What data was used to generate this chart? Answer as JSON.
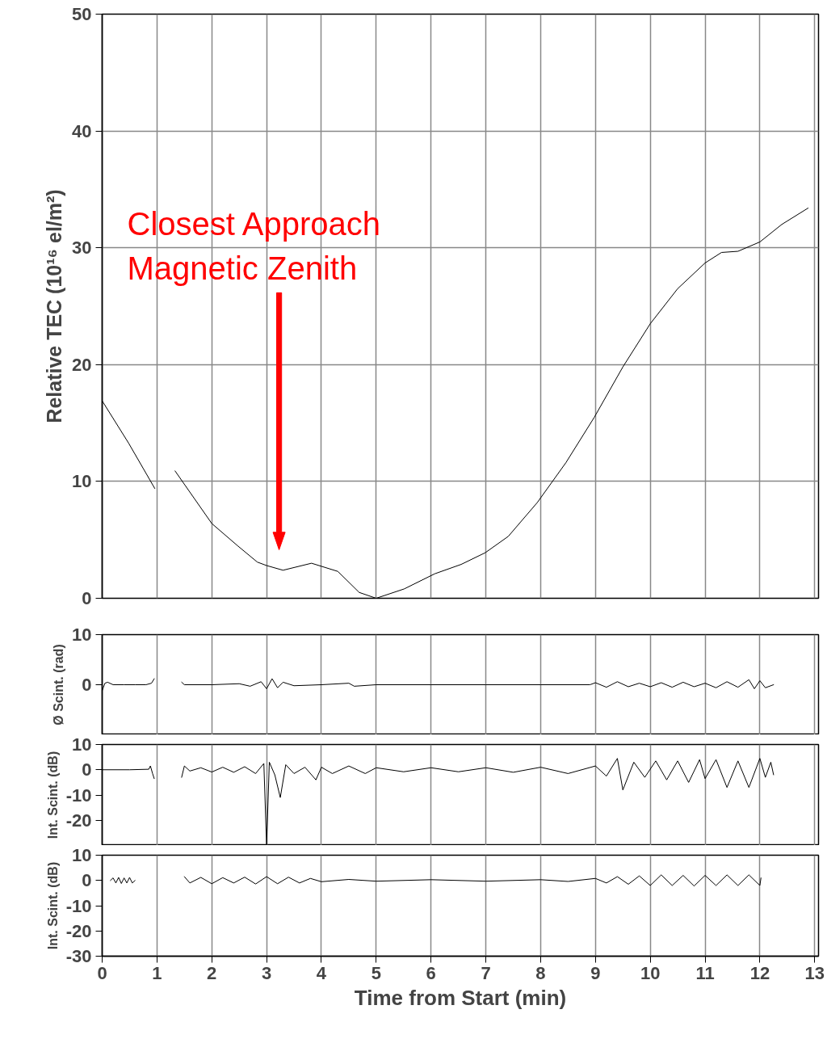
{
  "chart_data": [
    {
      "type": "line",
      "ylabel": "Relative TEC (10¹⁶ el/m²)",
      "xlim": [
        0,
        13.07
      ],
      "xticks": [
        0,
        1,
        2,
        3,
        4,
        5,
        6,
        7,
        8,
        9,
        10,
        11,
        12,
        13
      ],
      "ylim": [
        0,
        50
      ],
      "yticks": [
        0,
        10,
        20,
        30,
        40,
        50
      ],
      "grid": true,
      "tick_labels": "y",
      "series": [
        {
          "color": "#000000",
          "x": [
            0,
            0.48,
            0.96,
            1.1,
            1.33,
            2.0,
            2.47,
            2.83,
            3.0,
            3.3,
            3.82,
            4.3,
            4.69,
            5.0,
            5.51,
            6.07,
            6.55,
            6.99,
            7.41,
            7.94,
            8.46,
            8.98,
            9.5,
            10.0,
            10.5,
            11.0,
            11.3,
            11.6,
            12.0,
            12.4,
            12.88
          ],
          "values": [
            16.9,
            13.3,
            9.4,
            null,
            10.9,
            6.4,
            4.5,
            3.1,
            2.8,
            2.4,
            3.0,
            2.3,
            0.5,
            0,
            0.8,
            2.1,
            2.9,
            3.9,
            5.3,
            8.2,
            11.6,
            15.5,
            19.8,
            23.5,
            26.5,
            28.7,
            29.6,
            29.7,
            30.5,
            32.0,
            33.4
          ]
        }
      ],
      "annotations": [
        "Closest Approach\nMagnetic Zenith"
      ]
    },
    {
      "type": "line",
      "ylabel": "Ø Scint. (rad)",
      "xlim": [
        0,
        13.07
      ],
      "xticks": [
        0,
        1,
        2,
        3,
        4,
        5,
        6,
        7,
        8,
        9,
        10,
        11,
        12,
        13
      ],
      "ylim": [
        -10,
        10
      ],
      "yticks": [
        0,
        10
      ],
      "grid": "x",
      "tick_labels": "y",
      "series": [
        {
          "color": "#000000",
          "x": [
            0.0,
            0.05,
            0.1,
            0.2,
            0.4,
            0.6,
            0.8,
            0.9,
            0.95,
            1.2,
            1.45,
            1.5,
            2.0,
            2.5,
            2.7,
            2.9,
            3.0,
            3.1,
            3.2,
            3.3,
            3.5,
            4.0,
            4.5,
            4.6,
            5.0,
            6.0,
            7.0,
            8.0,
            8.9,
            9.0,
            9.2,
            9.4,
            9.6,
            9.8,
            10.0,
            10.2,
            10.4,
            10.6,
            10.8,
            11.0,
            11.2,
            11.4,
            11.6,
            11.8,
            11.9,
            12.0,
            12.1,
            12.25
          ],
          "values": [
            -1.2,
            0.3,
            0.5,
            0,
            0,
            0,
            0,
            0.3,
            1.2,
            null,
            0.5,
            0,
            0,
            0.2,
            -0.3,
            0.6,
            -0.8,
            1.2,
            -0.6,
            0.5,
            -0.2,
            0,
            0.3,
            -0.3,
            0,
            0,
            0,
            0,
            0,
            0.4,
            -0.5,
            0.6,
            -0.4,
            0.3,
            -0.4,
            0.4,
            -0.5,
            0.5,
            -0.4,
            0.3,
            -0.6,
            0.6,
            -0.5,
            1.0,
            -0.8,
            0.8,
            -0.6,
            0
          ]
        }
      ]
    },
    {
      "type": "line",
      "ylabel": "Int. Scint. (dB)",
      "xlim": [
        0,
        13.07
      ],
      "xticks": [
        0,
        1,
        2,
        3,
        4,
        5,
        6,
        7,
        8,
        9,
        10,
        11,
        12,
        13
      ],
      "ylim": [
        -30,
        10
      ],
      "yticks": [
        -20,
        -10,
        0,
        10
      ],
      "grid": "x",
      "tick_labels": "y",
      "series": [
        {
          "color": "#000000",
          "x": [
            0.0,
            0.5,
            0.85,
            0.88,
            0.92,
            0.95,
            1.2,
            1.45,
            1.5,
            1.6,
            1.8,
            2.0,
            2.2,
            2.4,
            2.6,
            2.8,
            2.95,
            3.0,
            3.05,
            3.15,
            3.25,
            3.35,
            3.5,
            3.7,
            3.9,
            4.0,
            4.2,
            4.5,
            4.8,
            5.0,
            5.5,
            6.0,
            6.5,
            7.0,
            7.5,
            8.0,
            8.5,
            9.0,
            9.2,
            9.4,
            9.5,
            9.7,
            9.9,
            10.1,
            10.3,
            10.5,
            10.7,
            10.9,
            11.0,
            11.2,
            11.4,
            11.6,
            11.8,
            12.0,
            12.1,
            12.2,
            12.25
          ],
          "values": [
            0,
            0,
            0.2,
            1.5,
            -1.5,
            -3.5,
            null,
            -3,
            1.5,
            -0.5,
            0.8,
            -0.9,
            1.0,
            -1,
            1.2,
            -1.5,
            2.5,
            -30,
            3.0,
            -2,
            -11,
            2,
            -1.5,
            1,
            -4,
            1,
            -1.5,
            1.5,
            -1.5,
            0.8,
            -0.8,
            0.8,
            -0.8,
            0.8,
            -1,
            1,
            -1.5,
            1.5,
            -2.5,
            4.5,
            -8,
            3,
            -3,
            3.5,
            -4,
            3.5,
            -5,
            4,
            -3.5,
            4,
            -7,
            3.5,
            -7,
            4.5,
            -3,
            3,
            -2
          ]
        }
      ]
    },
    {
      "type": "line",
      "xlabel": "Time from Start (min)",
      "ylabel": "Int. Scint. (dB)",
      "xlim": [
        0,
        13.07
      ],
      "xticks": [
        0,
        1,
        2,
        3,
        4,
        5,
        6,
        7,
        8,
        9,
        10,
        11,
        12,
        13
      ],
      "ylim": [
        -30,
        10
      ],
      "yticks": [
        -30,
        -20,
        -10,
        0,
        10
      ],
      "grid": "x",
      "series": [
        {
          "color": "#000000",
          "x": [
            0.15,
            0.2,
            0.25,
            0.3,
            0.35,
            0.4,
            0.45,
            0.5,
            0.55,
            0.6,
            1.0,
            1.5,
            1.6,
            1.8,
            2.0,
            2.2,
            2.4,
            2.6,
            2.8,
            3.0,
            3.2,
            3.4,
            3.6,
            3.8,
            4.0,
            4.5,
            5.0,
            6.0,
            7.0,
            8.0,
            8.5,
            9.0,
            9.2,
            9.4,
            9.6,
            9.8,
            10.0,
            10.2,
            10.4,
            10.6,
            10.8,
            11.0,
            11.2,
            11.4,
            11.6,
            11.8,
            12.0,
            12.02
          ],
          "values": [
            0,
            1,
            -1,
            1.2,
            -1.2,
            1,
            -1,
            1.2,
            -1,
            0,
            null,
            1.5,
            -1,
            1.2,
            -1.3,
            1.1,
            -1,
            1.3,
            -1.4,
            1.5,
            -1.3,
            1.3,
            -1,
            0.8,
            -0.5,
            0.4,
            -0.3,
            0.3,
            -0.3,
            0.3,
            -0.4,
            0.8,
            -1,
            1.5,
            -1.5,
            1.8,
            -2,
            2.2,
            -2,
            2,
            -2.2,
            2,
            -2,
            2.2,
            -2,
            2.2,
            -2,
            1
          ]
        }
      ]
    }
  ]
}
